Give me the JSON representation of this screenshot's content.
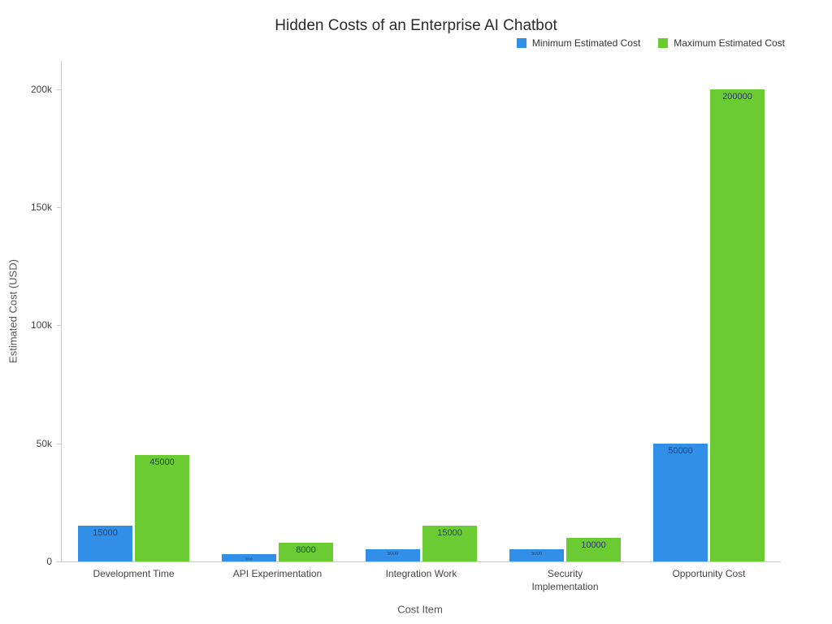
{
  "chart_data": {
    "type": "bar",
    "title": "Hidden Costs of an Enterprise AI Chatbot",
    "xlabel": "Cost Item",
    "ylabel": "Estimated Cost (USD)",
    "categories": [
      "Development Time",
      "API Experimentation",
      "Integration Work",
      "Security Implementation",
      "Opportunity Cost"
    ],
    "series": [
      {
        "name": "Minimum Estimated Cost",
        "color": "#328fe8",
        "values": [
          15000,
          3000,
          5000,
          5000,
          50000
        ]
      },
      {
        "name": "Maximum Estimated Cost",
        "color": "#6bcb33",
        "values": [
          45000,
          8000,
          15000,
          10000,
          200000
        ]
      }
    ],
    "ylim": [
      0,
      212000
    ],
    "yticks": [
      {
        "value": 0,
        "label": "0"
      },
      {
        "value": 50000,
        "label": "50k"
      },
      {
        "value": 100000,
        "label": "100k"
      },
      {
        "value": 150000,
        "label": "150k"
      },
      {
        "value": 200000,
        "label": "200k"
      }
    ],
    "legend_position": "top-right",
    "grid": false,
    "background": "#ffffff"
  }
}
